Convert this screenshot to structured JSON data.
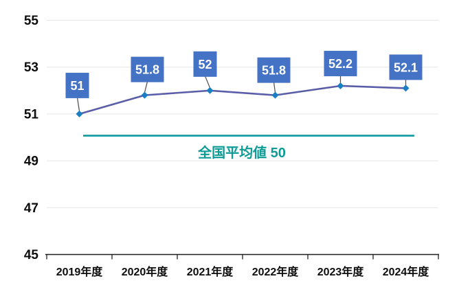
{
  "chart_data": {
    "type": "line",
    "categories": [
      "2019年度",
      "2020年度",
      "2021年度",
      "2022年度",
      "2023年度",
      "2024年度"
    ],
    "series": [
      {
        "values": [
          51,
          51.8,
          52,
          51.8,
          52.2,
          52.1
        ]
      }
    ],
    "data_labels": [
      "51",
      "51.8",
      "52",
      "51.8",
      "52.2",
      "52.1"
    ],
    "yticks": [
      45,
      47,
      49,
      51,
      53,
      55
    ],
    "ylim": [
      45,
      55
    ],
    "grid": true,
    "legend": "none",
    "reference_line": {
      "value": 50,
      "label": "全国平均値 50"
    },
    "colors": {
      "grid": "#E6E6E6",
      "axis": "#1F1F1F",
      "tick_label": "#0D0D0D",
      "line": "#5A5EA8",
      "marker": "#1B7EC3",
      "label_box": "#4472C4",
      "label_text": "#FFFFFF",
      "callout": "#4A4A4A",
      "average_line": "#179CA1",
      "average_text": "#0D9B95"
    }
  }
}
